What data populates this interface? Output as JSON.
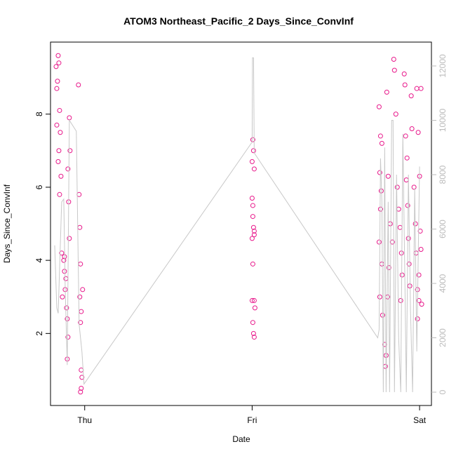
{
  "chart_data": {
    "type": "scatter",
    "title": "ATOM3 Northeast_Pacific_2 Days_Since_ConvInf",
    "x_label": "Date",
    "y_label": "Days_Since_ConvInf",
    "xlim": [
      -4.9,
      49.7
    ],
    "xticks": [
      {
        "value": 0,
        "label": "Thu"
      },
      {
        "value": 24,
        "label": "Fri"
      },
      {
        "value": 48,
        "label": "Sat"
      }
    ],
    "ylim": [
      0.03,
      9.97
    ],
    "yticks": [
      2,
      4,
      6,
      8
    ],
    "y2lim": [
      -490,
      12877
    ],
    "y2ticks": [
      0,
      2000,
      4000,
      6000,
      8000,
      10000,
      12000
    ],
    "series": [
      {
        "type": "scatter",
        "color": "#e8178a",
        "x": [
          -4.1,
          -3.8,
          -3.7,
          -3.9,
          -4.0,
          -3.6,
          -3.5,
          -4.0,
          -3.7,
          -3.8,
          -3.4,
          -3.6,
          -3.3,
          -3.0,
          -2.9,
          -2.8,
          -2.6,
          -2.5,
          -2.4,
          -2.5,
          -2.2,
          -2.1,
          -2.4,
          -2.3,
          -2.2,
          -0.9,
          -0.8,
          -0.7,
          -0.6,
          -0.7,
          -0.5,
          -0.6,
          -0.3,
          -0.5,
          -0.4,
          -0.5,
          -0.6,
          -3.2,
          -2.9,
          -2.7,
          24.1,
          24.2,
          24.0,
          24.3,
          24.0,
          24.1,
          24.2,
          24.0,
          24.3,
          24.1,
          24.0,
          24.3,
          24.4,
          24.1,
          24.2,
          24.3,
          24.1,
          24.3,
          42.2,
          42.4,
          42.6,
          42.3,
          42.5,
          42.4,
          42.2,
          42.6,
          42.3,
          42.7,
          43.0,
          43.1,
          43.2,
          43.4,
          43.6,
          43.3,
          43.5,
          43.8,
          44.1,
          44.3,
          44.4,
          44.6,
          44.8,
          45.0,
          45.2,
          45.4,
          45.5,
          45.3,
          45.8,
          45.9,
          46.0,
          46.2,
          46.1,
          46.3,
          46.4,
          46.5,
          46.6,
          46.8,
          46.9,
          47.2,
          47.4,
          47.5,
          47.7,
          47.9,
          47.7,
          47.9,
          47.6,
          47.8,
          48.2,
          48.0,
          48.1,
          48.2,
          48.3
        ],
        "values": [
          9.3,
          9.6,
          9.4,
          8.9,
          8.7,
          8.1,
          7.5,
          7.7,
          7.0,
          6.7,
          6.3,
          5.8,
          4.2,
          4.0,
          3.7,
          3.2,
          2.7,
          2.4,
          1.9,
          1.3,
          7.9,
          7.0,
          6.5,
          5.6,
          4.6,
          8.8,
          5.8,
          4.9,
          3.9,
          3.0,
          2.6,
          2.3,
          3.2,
          1.0,
          0.8,
          0.5,
          0.4,
          3.0,
          4.1,
          3.5,
          7.3,
          7.0,
          6.7,
          6.5,
          5.7,
          5.5,
          4.9,
          4.6,
          4.7,
          3.9,
          2.9,
          2.9,
          2.7,
          2.3,
          2.0,
          1.9,
          5.2,
          4.8,
          8.2,
          7.4,
          7.2,
          6.4,
          5.9,
          5.4,
          4.5,
          3.9,
          3.0,
          2.5,
          1.7,
          1.1,
          1.4,
          3.0,
          3.8,
          8.6,
          6.3,
          5.0,
          4.5,
          9.5,
          9.2,
          8.0,
          6.0,
          5.4,
          4.9,
          4.2,
          3.6,
          2.9,
          9.1,
          8.8,
          7.4,
          6.8,
          6.2,
          5.5,
          4.6,
          3.9,
          3.3,
          8.5,
          7.6,
          6.0,
          5.0,
          4.2,
          3.2,
          2.9,
          2.4,
          3.6,
          8.7,
          7.5,
          8.7,
          6.3,
          4.8,
          4.3,
          2.8
        ]
      },
      {
        "type": "line",
        "axis": "y2",
        "color": "#c8c8c8",
        "x": [
          -4.3,
          -4.0,
          -3.8,
          -3.3,
          -3.0,
          -2.8,
          -2.5,
          -2.2,
          -1.2,
          -0.8,
          -0.4,
          -0.1,
          24.0,
          24.05,
          24.2,
          24.3,
          42.0,
          42.2,
          42.4,
          42.6,
          42.8,
          43.0,
          43.2,
          43.5,
          43.7,
          44.0,
          44.2,
          44.4,
          44.7,
          45.0,
          45.3,
          45.6,
          45.9,
          46.1,
          46.4,
          46.7,
          47.0,
          47.3,
          47.6,
          48.0
        ],
        "values": [
          5400,
          3100,
          2900,
          7000,
          7100,
          3900,
          1000,
          10000,
          9600,
          2500,
          1500,
          300,
          9200,
          12300,
          12300,
          8800,
          2000,
          2300,
          8600,
          7000,
          0,
          9000,
          0,
          7000,
          0,
          10000,
          10000,
          0,
          8000,
          2000,
          0,
          9500,
          4000,
          0,
          8000,
          3000,
          0,
          7500,
          1500,
          8300
        ]
      }
    ]
  }
}
